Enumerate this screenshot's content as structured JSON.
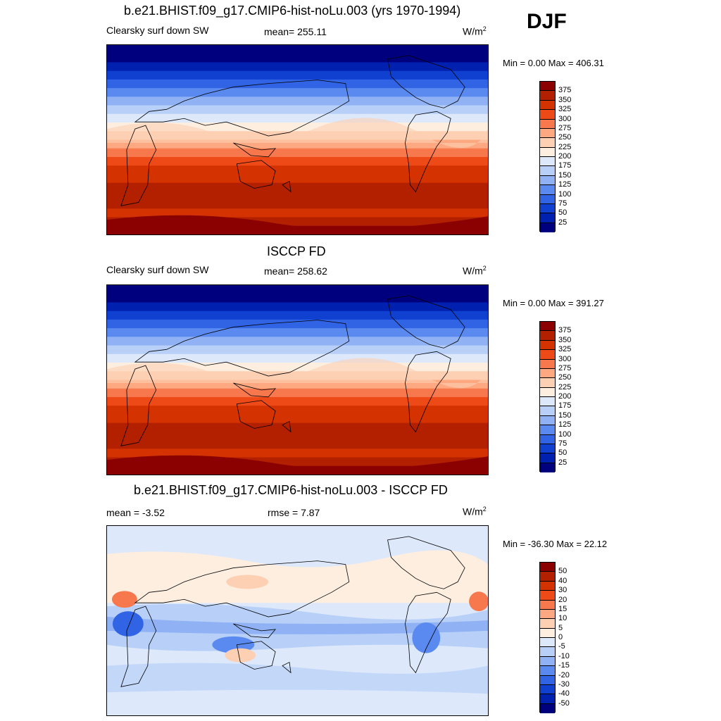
{
  "season": "DJF",
  "panels": [
    {
      "title": "b.e21.BHIST.f09_g17.CMIP6-hist-noLu.003 (yrs 1970-1994)",
      "left_label": "Clearsky surf down SW",
      "center_label": "mean= 255.11",
      "unit": "W/m",
      "unit_sup": "2",
      "minmax": "Min =   0.00 Max = 406.31",
      "kind": "field",
      "levels": [
        "375",
        "350",
        "325",
        "300",
        "275",
        "250",
        "225",
        "200",
        "175",
        "150",
        "125",
        "100",
        "75",
        "50",
        "25"
      ],
      "colors": [
        "#8b0000",
        "#b22000",
        "#d43200",
        "#ee4a18",
        "#f8784e",
        "#fda880",
        "#fdd0b4",
        "#fdeedf",
        "#dde8fb",
        "#b8d0f8",
        "#90b2f4",
        "#5a8af0",
        "#3064e4",
        "#1040d0",
        "#0020b0",
        "#00007f"
      ]
    },
    {
      "title": "ISCCP FD",
      "left_label": "Clearsky surf down SW",
      "center_label": "mean= 258.62",
      "unit": "W/m",
      "unit_sup": "2",
      "minmax": "Min =   0.00 Max = 391.27",
      "kind": "field",
      "levels": [
        "375",
        "350",
        "325",
        "300",
        "275",
        "250",
        "225",
        "200",
        "175",
        "150",
        "125",
        "100",
        "75",
        "50",
        "25"
      ],
      "colors": [
        "#8b0000",
        "#b22000",
        "#d43200",
        "#ee4a18",
        "#f8784e",
        "#fda880",
        "#fdd0b4",
        "#fdeedf",
        "#dde8fb",
        "#b8d0f8",
        "#90b2f4",
        "#5a8af0",
        "#3064e4",
        "#1040d0",
        "#0020b0",
        "#00007f"
      ]
    },
    {
      "title": "b.e21.BHIST.f09_g17.CMIP6-hist-noLu.003 - ISCCP FD",
      "left_label": "mean =  -3.52",
      "center_label": "rmse =   7.87",
      "unit": "W/m",
      "unit_sup": "2",
      "minmax": "Min = -36.30 Max =  22.12",
      "kind": "diff",
      "levels": [
        "50",
        "40",
        "30",
        "20",
        "15",
        "10",
        "5",
        "0",
        "-5",
        "-10",
        "-15",
        "-20",
        "-30",
        "-40",
        "-50"
      ],
      "colors": [
        "#8b0000",
        "#b22000",
        "#d43200",
        "#ee4a18",
        "#f8784e",
        "#fda880",
        "#fdd0b4",
        "#fdeedf",
        "#dde8fb",
        "#b8d0f8",
        "#90b2f4",
        "#5a8af0",
        "#3064e4",
        "#1040d0",
        "#0020b0",
        "#00007f"
      ]
    }
  ]
}
